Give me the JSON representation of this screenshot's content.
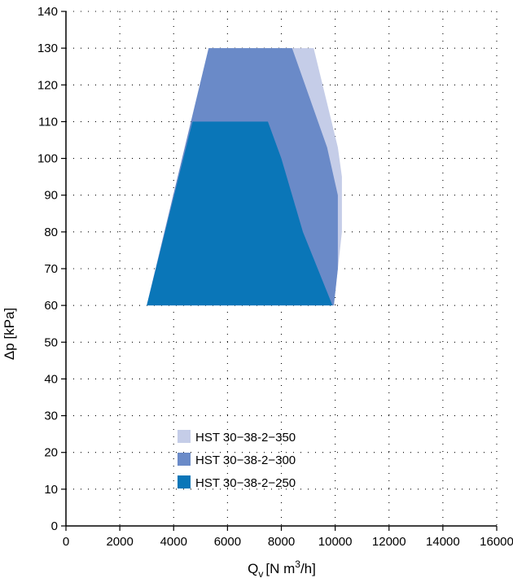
{
  "chart_data": {
    "type": "area",
    "xlabel_main": "Q",
    "xlabel_sub": "v",
    "xlabel_rest_before_sup": "[N m",
    "xlabel_sup": "3",
    "xlabel_rest_after_sup": "/h]",
    "ylabel": "Δp [kPa]",
    "xlim": [
      0,
      16000
    ],
    "ylim": [
      0,
      140
    ],
    "xticks": [
      0,
      2000,
      4000,
      6000,
      8000,
      10000,
      12000,
      14000,
      16000
    ],
    "yticks": [
      0,
      10,
      20,
      30,
      40,
      50,
      60,
      70,
      80,
      90,
      100,
      110,
      120,
      130,
      140
    ],
    "grid": true,
    "legend_placement": "bottom-center",
    "series": [
      {
        "name": "HST 30−38-2−350",
        "color": "#c5cde8",
        "polygon": [
          [
            5300,
            130
          ],
          [
            9200,
            130
          ],
          [
            10100,
            103
          ],
          [
            10250,
            95
          ],
          [
            10250,
            80
          ],
          [
            9950,
            60
          ],
          [
            3000,
            60
          ]
        ]
      },
      {
        "name": "HST 30−38-2−300",
        "color": "#6a8ac8",
        "polygon": [
          [
            5300,
            130
          ],
          [
            8400,
            130
          ],
          [
            9700,
            103
          ],
          [
            10100,
            90
          ],
          [
            10100,
            70
          ],
          [
            9950,
            60
          ],
          [
            3000,
            60
          ]
        ]
      },
      {
        "name": "HST 30−38-2−250",
        "color": "#0a76b8",
        "polygon": [
          [
            4700,
            110
          ],
          [
            7500,
            110
          ],
          [
            8000,
            100
          ],
          [
            8800,
            80
          ],
          [
            9900,
            60
          ],
          [
            3000,
            60
          ]
        ]
      }
    ]
  }
}
